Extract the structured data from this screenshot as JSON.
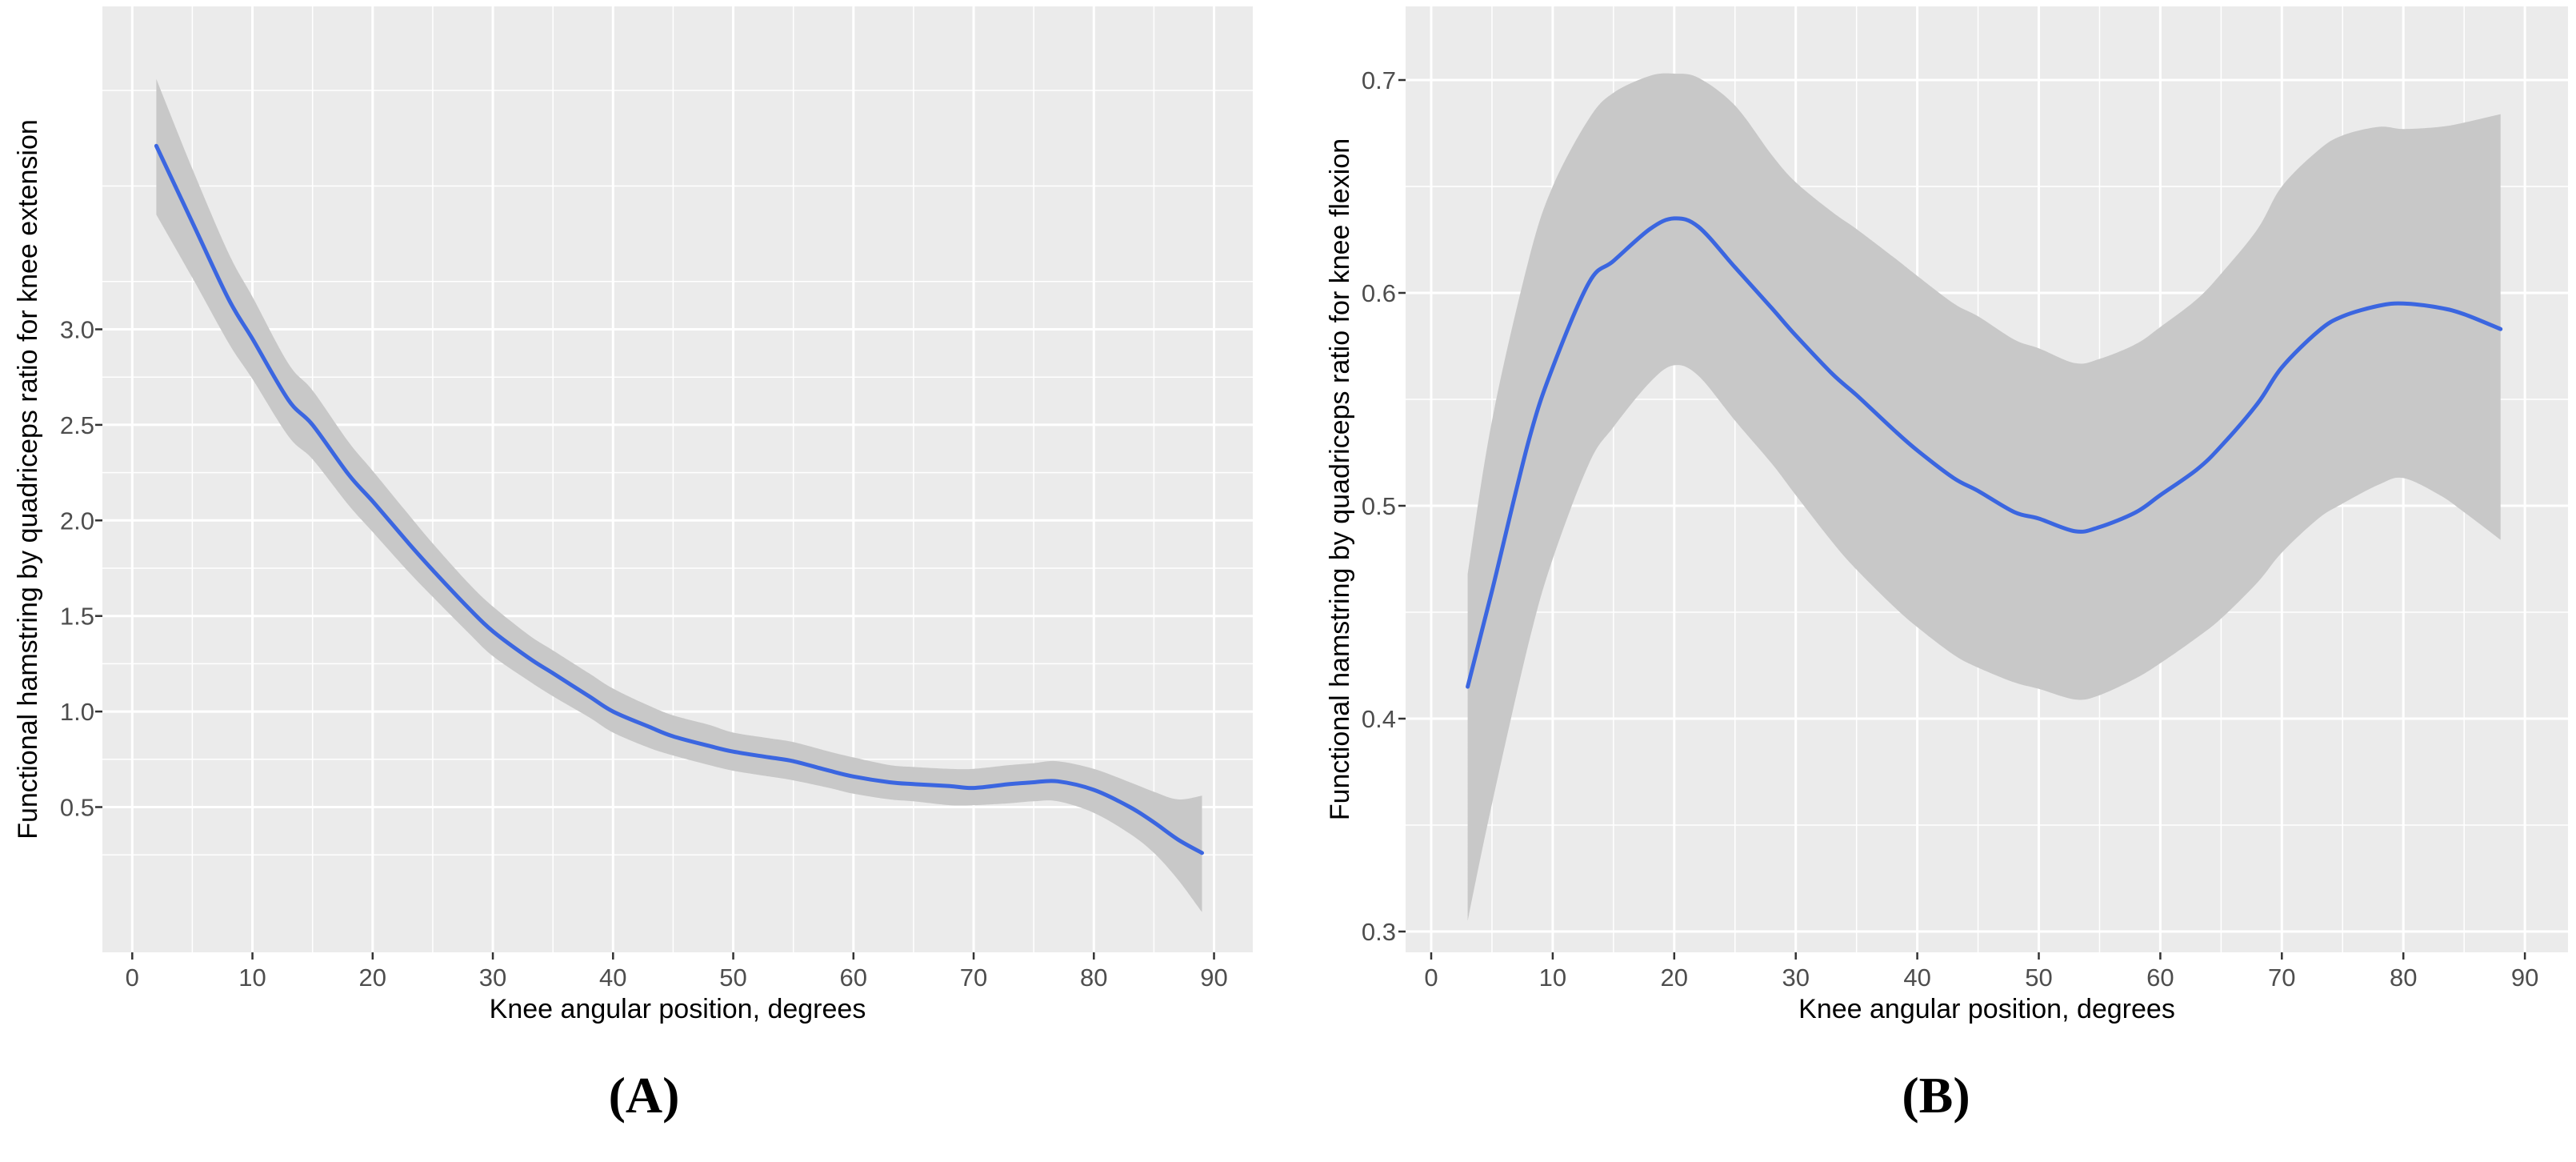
{
  "figure": {
    "colors": {
      "background": "#ffffff",
      "panel_background": "#ebebeb",
      "gridline": "#ffffff",
      "confidence_band": "#c8c8c8",
      "smooth_line": "#3b66e0",
      "tick_label": "#4d4d4d",
      "axis_title": "#000000"
    }
  },
  "chart_data": [
    {
      "type": "line",
      "panel_label": "(A)",
      "title": "",
      "xlabel": "Knee angular position, degrees",
      "ylabel": "Functional hamstring by quadriceps ratio for knee extension",
      "x_ticks": [
        0,
        10,
        20,
        30,
        40,
        50,
        60,
        70,
        80,
        90
      ],
      "x_tick_labels": [
        "0",
        "10",
        "20",
        "30",
        "40",
        "50",
        "60",
        "70",
        "80",
        "90"
      ],
      "y_ticks": [
        0.5,
        1.0,
        1.5,
        2.0,
        2.5,
        3.0
      ],
      "y_tick_labels": [
        "0.5",
        "1.0",
        "1.5",
        "2.0",
        "2.5",
        "3.0"
      ],
      "xlim": [
        -2.5,
        93.4
      ],
      "ylim": [
        -0.26,
        4.69
      ],
      "grid": true,
      "legend": false,
      "series": [
        {
          "name": "smooth_mean",
          "x": [
            2,
            5,
            8,
            10,
            13,
            15,
            18,
            20,
            23,
            25,
            28,
            30,
            33,
            35,
            38,
            40,
            43,
            45,
            48,
            50,
            53,
            55,
            58,
            60,
            63,
            65,
            68,
            70,
            73,
            75,
            77,
            80,
            83,
            85,
            87,
            89
          ],
          "y": [
            3.96,
            3.56,
            3.16,
            2.95,
            2.63,
            2.5,
            2.24,
            2.1,
            1.88,
            1.74,
            1.54,
            1.42,
            1.28,
            1.2,
            1.08,
            1.0,
            0.92,
            0.87,
            0.82,
            0.79,
            0.76,
            0.74,
            0.69,
            0.66,
            0.63,
            0.62,
            0.61,
            0.6,
            0.62,
            0.63,
            0.635,
            0.59,
            0.5,
            0.42,
            0.33,
            0.26
          ]
        },
        {
          "name": "ci_lower",
          "y": [
            3.6,
            3.27,
            2.93,
            2.74,
            2.44,
            2.32,
            2.08,
            1.94,
            1.73,
            1.6,
            1.41,
            1.29,
            1.16,
            1.08,
            0.97,
            0.89,
            0.81,
            0.77,
            0.72,
            0.69,
            0.66,
            0.64,
            0.6,
            0.57,
            0.54,
            0.53,
            0.51,
            0.51,
            0.52,
            0.53,
            0.53,
            0.47,
            0.36,
            0.26,
            0.12,
            -0.05
          ]
        },
        {
          "name": "ci_upper",
          "y": [
            4.31,
            3.84,
            3.4,
            3.17,
            2.82,
            2.68,
            2.41,
            2.26,
            2.03,
            1.88,
            1.67,
            1.55,
            1.4,
            1.32,
            1.2,
            1.12,
            1.03,
            0.98,
            0.93,
            0.89,
            0.86,
            0.84,
            0.79,
            0.76,
            0.72,
            0.71,
            0.7,
            0.7,
            0.72,
            0.73,
            0.74,
            0.7,
            0.63,
            0.58,
            0.54,
            0.56
          ]
        }
      ]
    },
    {
      "type": "line",
      "panel_label": "(B)",
      "title": "",
      "xlabel": "Knee angular position, degrees",
      "ylabel": "Functional hamstring by quadriceps ratio for knee flexion",
      "x_ticks": [
        0,
        10,
        20,
        30,
        40,
        50,
        60,
        70,
        80,
        90
      ],
      "x_tick_labels": [
        "0",
        "10",
        "20",
        "30",
        "40",
        "50",
        "60",
        "70",
        "80",
        "90"
      ],
      "y_ticks": [
        0.3,
        0.4,
        0.5,
        0.6,
        0.7
      ],
      "y_tick_labels": [
        "0.3",
        "0.4",
        "0.5",
        "0.6",
        "0.7"
      ],
      "xlim": [
        -2.2,
        93.3
      ],
      "ylim": [
        0.29,
        0.735
      ],
      "grid": true,
      "legend": false,
      "series": [
        {
          "name": "smooth_mean",
          "x": [
            3,
            5,
            8,
            10,
            13,
            15,
            18,
            20,
            22,
            25,
            28,
            30,
            33,
            35,
            38,
            40,
            43,
            45,
            48,
            50,
            53,
            55,
            58,
            60,
            63,
            65,
            68,
            70,
            73,
            75,
            78,
            80,
            83,
            85,
            88
          ],
          "y": [
            0.415,
            0.46,
            0.53,
            0.565,
            0.605,
            0.615,
            0.63,
            0.635,
            0.631,
            0.612,
            0.593,
            0.58,
            0.562,
            0.552,
            0.536,
            0.526,
            0.513,
            0.507,
            0.497,
            0.494,
            0.488,
            0.49,
            0.497,
            0.505,
            0.517,
            0.528,
            0.548,
            0.565,
            0.582,
            0.589,
            0.594,
            0.595,
            0.593,
            0.59,
            0.583
          ]
        },
        {
          "name": "ci_lower",
          "y": [
            0.305,
            0.36,
            0.435,
            0.475,
            0.52,
            0.537,
            0.558,
            0.566,
            0.561,
            0.54,
            0.52,
            0.505,
            0.483,
            0.47,
            0.453,
            0.443,
            0.43,
            0.424,
            0.417,
            0.414,
            0.409,
            0.411,
            0.419,
            0.426,
            0.438,
            0.447,
            0.464,
            0.478,
            0.494,
            0.501,
            0.51,
            0.513,
            0.505,
            0.497,
            0.484
          ]
        },
        {
          "name": "ci_upper",
          "y": [
            0.468,
            0.54,
            0.615,
            0.65,
            0.682,
            0.694,
            0.702,
            0.703,
            0.701,
            0.688,
            0.665,
            0.652,
            0.638,
            0.63,
            0.617,
            0.608,
            0.595,
            0.589,
            0.578,
            0.574,
            0.567,
            0.569,
            0.576,
            0.584,
            0.597,
            0.609,
            0.63,
            0.65,
            0.667,
            0.674,
            0.678,
            0.677,
            0.678,
            0.68,
            0.684
          ]
        }
      ]
    }
  ]
}
